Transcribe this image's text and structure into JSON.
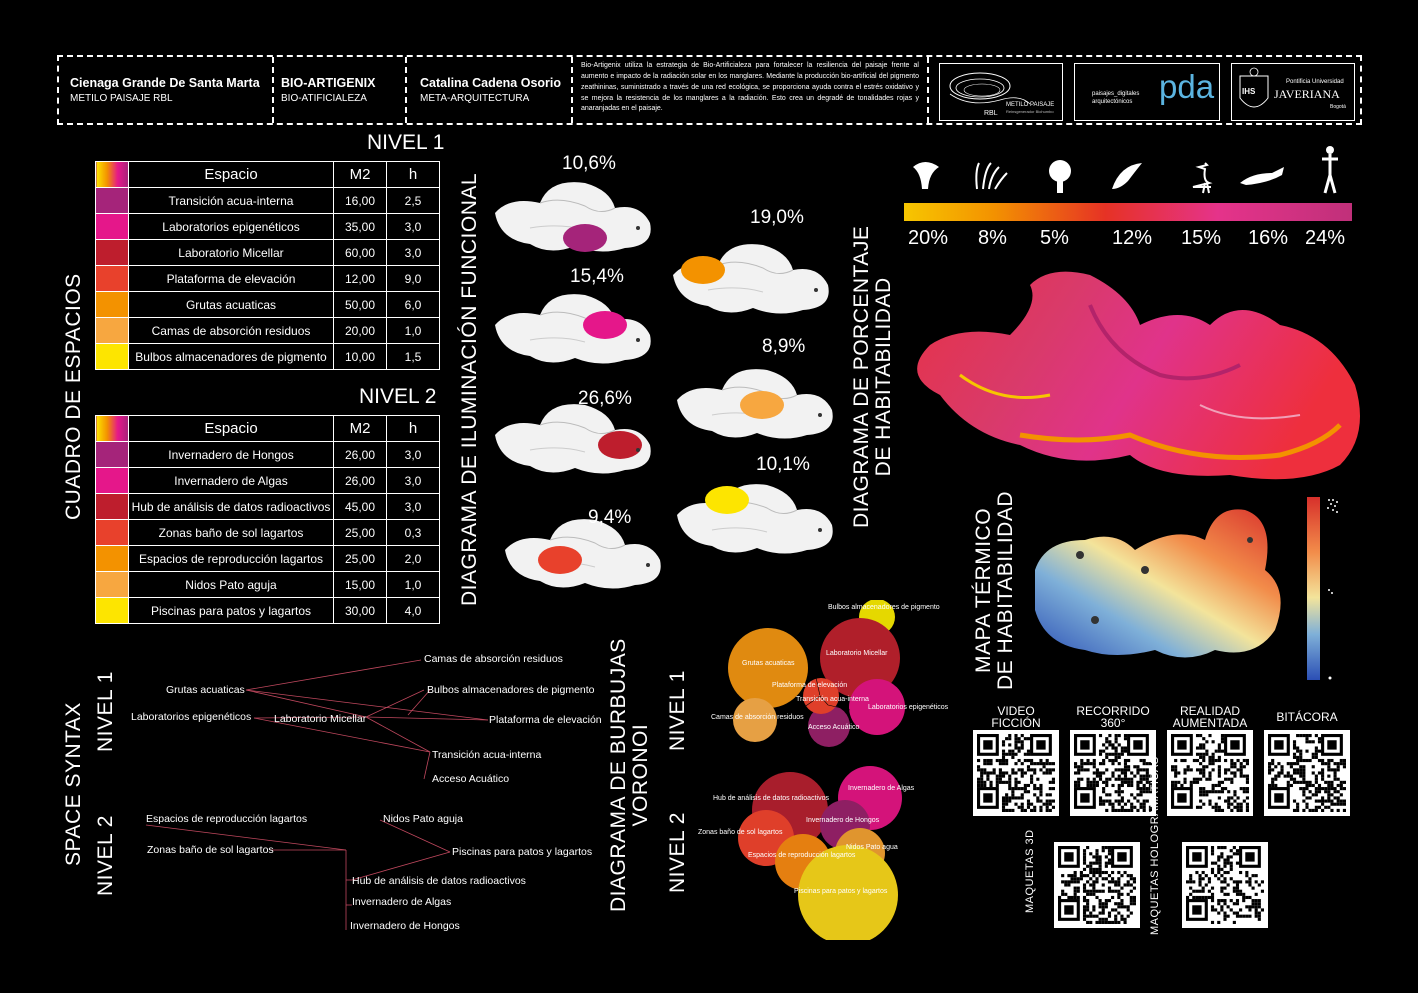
{
  "header": {
    "cell1_title": "Cienaga Grande De Santa Marta",
    "cell1_sub": "METILO PAISAJE RBL",
    "cell2_title": "BIO-ARTIGENIX",
    "cell2_sub": "BIO-ATIFICIALEZA",
    "cell3_title": "Catalina Cadena Osorio",
    "cell3_sub": "META-ARQUITECTURA",
    "description": "Bio-Artigenix utiliza la estrategia de Bio-Artificialeza para fortalecer la resiliencia del paisaje frente al aumento e impacto de la radiación solar en los manglares. Mediante la producción bio-artificial del pigmento zeathininas, suministrado a través de una red ecológica, se proporciona ayuda contra el estrés oxidativo y se mejora la resistencia de los manglares a la radiación. Esto crea un degradé de tonalidades rojas y anaranjadas en el paisaje.",
    "logo1_text": "METILO PAISAJE",
    "logo1_sub": "Reinsgenerador Biohumbo",
    "logo1_tag": "RBL",
    "logo2_small1": "paisajes_digitales",
    "logo2_small2": "arquitectónicos",
    "logo2_big": "pda",
    "logo3_small": "Pontificia Universidad",
    "logo3_big": "JAVERIANA",
    "logo3_city": "Bogotá",
    "logo3_seal": "IHS"
  },
  "cuadro": {
    "title": "CUADRO DE ESPACIOS",
    "nivel1_label": "NIVEL 1",
    "nivel2_label": "NIVEL 2",
    "col_space": "Espacio",
    "col_m2": "M2",
    "col_h": "h",
    "nivel1": [
      {
        "name": "Transición acua-interna",
        "m2": "16,00",
        "h": "2,5",
        "color": "#a5247a"
      },
      {
        "name": "Laboratorios epigenéticos",
        "m2": "35,00",
        "h": "3,0",
        "color": "#e5178a"
      },
      {
        "name": "Laboratorio Micellar",
        "m2": "60,00",
        "h": "3,0",
        "color": "#be1e2d"
      },
      {
        "name": "Plataforma de elevación",
        "m2": "12,00",
        "h": "9,0",
        "color": "#e8412c"
      },
      {
        "name": "Grutas acuaticas",
        "m2": "50,00",
        "h": "6,0",
        "color": "#f39200"
      },
      {
        "name": "Camas de absorción residuos",
        "m2": "20,00",
        "h": "1,0",
        "color": "#f7a740"
      },
      {
        "name": "Bulbos almacenadores de pigmento",
        "m2": "10,00",
        "h": "1,5",
        "color": "#fde500"
      }
    ],
    "nivel2": [
      {
        "name": "Invernadero de Hongos",
        "m2": "26,00",
        "h": "3,0",
        "color": "#a5247a"
      },
      {
        "name": "Invernadero de Algas",
        "m2": "26,00",
        "h": "3,0",
        "color": "#e5178a"
      },
      {
        "name": "Hub de análisis de datos radioactivos",
        "m2": "45,00",
        "h": "3,0",
        "color": "#be1e2d"
      },
      {
        "name": "Zonas baño de sol lagartos",
        "m2": "25,00",
        "h": "0,3",
        "color": "#e8412c"
      },
      {
        "name": "Espacios de reproducción lagartos",
        "m2": "25,00",
        "h": "2,0",
        "color": "#f39200"
      },
      {
        "name": "Nidos Pato aguja",
        "m2": "15,00",
        "h": "1,0",
        "color": "#f7a740"
      },
      {
        "name": "Piscinas para patos y lagartos",
        "m2": "30,00",
        "h": "4,0",
        "color": "#fde500"
      }
    ]
  },
  "iluminacion": {
    "title": "DIAGRAMA DE ILUMINACIÓN FUNCIONAL",
    "col1": [
      "10,6%",
      "15,4%",
      "26,6%",
      "9,4%"
    ],
    "col1_colors": [
      "#a5247a",
      "#e5178a",
      "#be1e2d",
      "#e8412c"
    ],
    "col2": [
      "19,0%",
      "8,9%",
      "10,1%"
    ],
    "col2_colors": [
      "#f39200",
      "#f7a740",
      "#fde500"
    ]
  },
  "habitabilidad": {
    "title_line1": "DIAGRAMA DE PORCENTAJE",
    "title_line2": "DE HABITABILIDAD",
    "percentages": [
      "20%",
      "8%",
      "5%",
      "12%",
      "15%",
      "16%",
      "24%"
    ],
    "icons": [
      "mushroom-icon",
      "algae-icon",
      "tree-icon",
      "fish-icon",
      "heron-icon",
      "crocodile-icon",
      "human-icon"
    ]
  },
  "termico": {
    "title_line1": "MAPA TÉRMICO",
    "title_line2": "DE HABITABILIDAD"
  },
  "voronoi": {
    "title_line1": "DIAGRAMA DE BURBUJAS",
    "title_line2": "VORONOI",
    "nivel1_label": "NIVEL 1",
    "nivel2_label": "NIVEL 2",
    "n1_labels": [
      "Bulbos almacenadores de pigmento",
      "Grutas acuaticas",
      "Laboratorio Micellar",
      "Plataforma de elevación",
      "Transición acua-interna",
      "Laboratorios epigenéticos",
      "Camas de absorción residuos",
      "Acceso Acuático"
    ],
    "n2_labels": [
      "Invernadero de Algas",
      "Hub de análisis de datos radioactivos",
      "Invernadero de Hongos",
      "Zonas baño de sol lagartos",
      "Nidos Pato agua",
      "Espacios de reproducción lagartos",
      "Piscinas para patos y lagartos"
    ]
  },
  "spacesyntax": {
    "title": "SPACE SYNTAX",
    "nivel1_label": "NIVEL 1",
    "nivel2_label": "NIVEL 2",
    "n1": {
      "camas": "Camas de absorción residuos",
      "grutas": "Grutas acuaticas",
      "bulbos": "Bulbos almacenadores de pigmento",
      "labepi": "Laboratorios epigenéticos",
      "labmic": "Laboratorio Micellar",
      "plataforma": "Plataforma de elevación",
      "transicion": "Transición acua-interna",
      "acceso": "Acceso Acuático"
    },
    "n2": {
      "reproduccion": "Espacios de reproducción lagartos",
      "nidos": "Nidos Pato aguja",
      "bano": "Zonas baño de sol lagartos",
      "piscinas": "Piscinas para patos y lagartos",
      "hub": "Hub de análisis de datos radioactivos",
      "algas": "Invernadero de Algas",
      "hongos": "Invernadero de Hongos"
    }
  },
  "qr": {
    "video": "VIDEO FICCIÓN",
    "recorrido": "RECORRIDO 360°",
    "realidad": "REALIDAD AUMENTADA",
    "bitacora": "BITÁCORA",
    "maquetas3d": "MAQUETAS 3D",
    "holograficas": "MAQUETAS HOLOGRÁMATICAS"
  }
}
